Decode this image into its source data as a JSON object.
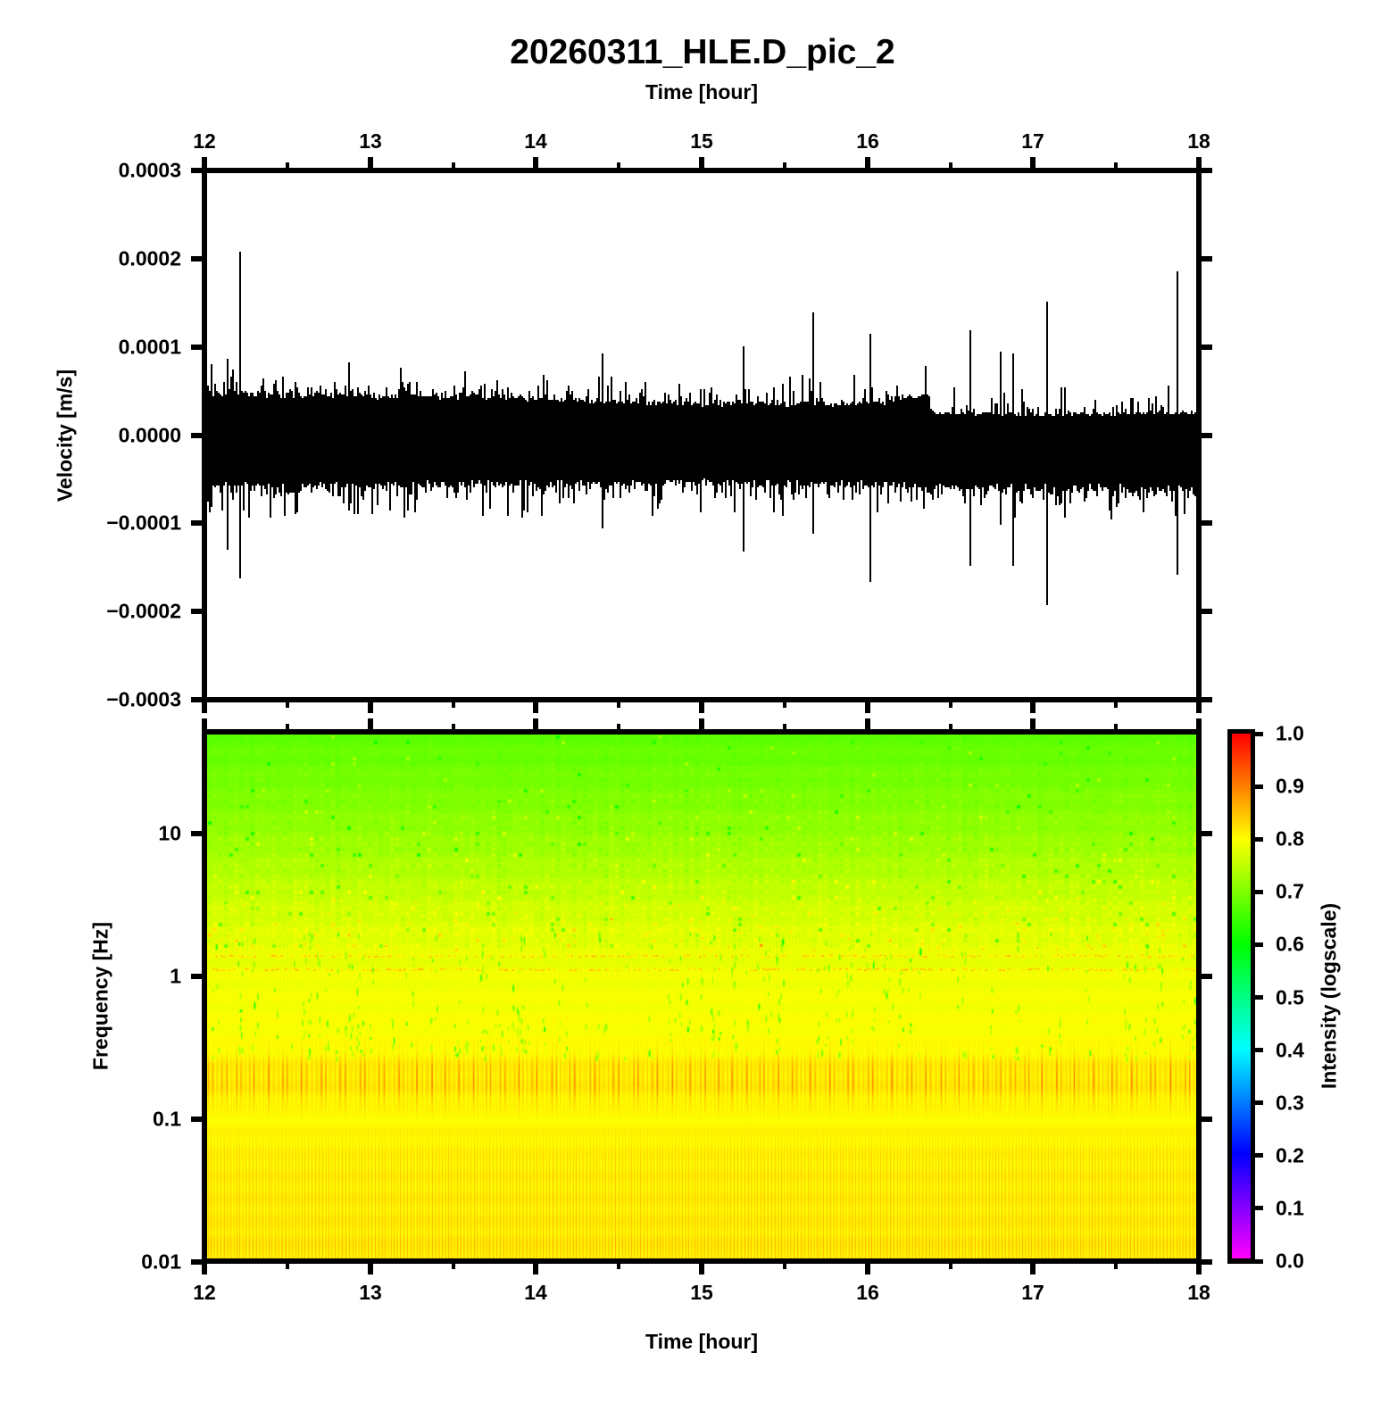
{
  "title": "20260311_HLE.D_pic_2",
  "chart_data": [
    {
      "type": "line",
      "name": "seismic-waveform",
      "title": "20260311_HLE.D_pic_2",
      "xlabel": "Time [hour]",
      "xlabel_position": "top",
      "ylabel": "Velocity [m/s]",
      "x_range": [
        12,
        18
      ],
      "x_major_ticks": [
        12,
        13,
        14,
        15,
        16,
        17,
        18
      ],
      "x_major_labels": [
        "12",
        "13",
        "14",
        "15",
        "16",
        "17",
        "18"
      ],
      "x_minor_ticks": [
        12.5,
        13.5,
        14.5,
        15.5,
        16.5,
        17.5
      ],
      "y_range": [
        -0.0003,
        0.0003
      ],
      "y_major_ticks": [
        0.0003,
        0.0002,
        0.0001,
        0.0,
        -0.0001,
        -0.0002,
        -0.0003
      ],
      "y_major_labels": [
        "0.0003",
        "0.0002",
        "0.0001",
        "0.0000",
        "−0.0001",
        "−0.0002",
        "−0.0003"
      ],
      "grid": false,
      "line_color": "#000000",
      "background": "#ffffff",
      "series_description": "continuous broadband seismometer noise band with impulsive spikes; envelope steps down at t=16.38 h",
      "noise_envelope_top": [
        [
          12,
          4.7e-05
        ],
        [
          12.5,
          4.55e-05
        ],
        [
          13,
          4.4e-05
        ],
        [
          13.5,
          4.35e-05
        ],
        [
          14,
          4.05e-05
        ],
        [
          14.5,
          3.8e-05
        ],
        [
          15,
          3.5e-05
        ],
        [
          15.5,
          3.5e-05
        ],
        [
          16,
          3.6e-05
        ],
        [
          16.25,
          3.9e-05
        ],
        [
          16.36,
          4.4e-05
        ],
        [
          16.39,
          2.55e-05
        ],
        [
          16.8,
          2.35e-05
        ],
        [
          17.3,
          2.35e-05
        ],
        [
          18,
          2.5e-05
        ]
      ],
      "noise_envelope_bottom": [
        [
          12,
          -5.5e-05
        ],
        [
          12.7,
          -5.45e-05
        ],
        [
          13.4,
          -5.35e-05
        ],
        [
          14.2,
          -5.3e-05
        ],
        [
          15,
          -5.15e-05
        ],
        [
          15.6,
          -5.3e-05
        ],
        [
          16,
          -5.4e-05
        ],
        [
          16.38,
          -5.5e-05
        ],
        [
          17,
          -5.65e-05
        ],
        [
          17.5,
          -5.75e-05
        ],
        [
          18,
          -5.85e-05
        ]
      ],
      "hair_mean_top": 8.5e-06,
      "hair_mean_bottom": 1.05e-05,
      "spikes": [
        {
          "t": 12.135,
          "up": 8.7e-05,
          "down": -0.000129
        },
        {
          "t": 12.21,
          "up": 0.000208,
          "down": -0.00016
        },
        {
          "t": 12.87,
          "up": 8.2e-05,
          "down": -8.3e-05
        },
        {
          "t": 14.395,
          "up": 9.3e-05,
          "down": -0.000103
        },
        {
          "t": 15.245,
          "up": 0.0001,
          "down": -0.00013
        },
        {
          "t": 15.67,
          "up": 0.00014,
          "down": -0.00011
        },
        {
          "t": 16.01,
          "up": 0.000115,
          "down": -0.000165
        },
        {
          "t": 16.615,
          "up": 0.000118,
          "down": -0.000147
        },
        {
          "t": 16.8,
          "up": 9.5e-05,
          "down": -0.0001
        },
        {
          "t": 16.87,
          "up": 9.2e-05,
          "down": -0.000146
        },
        {
          "t": 17.08,
          "up": 0.000151,
          "down": -0.000191
        },
        {
          "t": 17.19,
          "up": 5.5e-05,
          "down": -9.2e-05
        },
        {
          "t": 17.86,
          "up": 0.000185,
          "down": -0.000157
        }
      ],
      "seed": 20260311
    },
    {
      "type": "heatmap",
      "name": "spectrogram",
      "xlabel": "Time [hour]",
      "xlabel_position": "bottom",
      "ylabel": "Frequency [Hz]",
      "x_range": [
        12,
        18
      ],
      "x_major_ticks": [
        12,
        13,
        14,
        15,
        16,
        17,
        18
      ],
      "x_major_labels": [
        "12",
        "13",
        "14",
        "15",
        "16",
        "17",
        "18"
      ],
      "x_minor_ticks": [
        12.5,
        13.5,
        14.5,
        15.5,
        16.5,
        17.5
      ],
      "y_scale": "log",
      "y_range": [
        0.0105,
        49.5
      ],
      "y_major_ticks": [
        10,
        1,
        0.1,
        0.01
      ],
      "y_major_labels": [
        "10",
        "1",
        "0.1",
        "0.01"
      ],
      "colormap": "gmt-rainbow (hue = 300*(1-intensity), full saturation HSV: magenta=0 through blue, cyan, green, yellow to red=1)",
      "intensity_profile_logf": [
        [
          1.7,
          0.672
        ],
        [
          1.3,
          0.696
        ],
        [
          1.0,
          0.716
        ],
        [
          0.7,
          0.743
        ],
        [
          0.48,
          0.763
        ],
        [
          0.3,
          0.776
        ],
        [
          0.1,
          0.784
        ],
        [
          0.0,
          0.789
        ],
        [
          -0.3,
          0.796
        ],
        [
          -0.52,
          0.8
        ],
        [
          -0.64,
          0.81
        ],
        [
          -0.82,
          0.81
        ],
        [
          -0.94,
          0.801
        ],
        [
          -1.1,
          0.806
        ],
        [
          -1.5,
          0.809
        ],
        [
          -1.85,
          0.812
        ],
        [
          -1.98,
          0.815
        ]
      ],
      "texture": {
        "speckle_band_logf": [
          0.2,
          1.7
        ],
        "microseism_band_logf_center": -0.72,
        "microseism_band_logf_sigma": 0.115,
        "microseism_stripe_amp": 0.105,
        "lowfreq_stripe_logf_below": -1.02,
        "lowfreq_stripe_amp": 0.05,
        "red_dot_rows_logf": [
          0.145,
          0.05
        ],
        "event_column_count": 120,
        "seed": 311
      },
      "colorbar": {
        "label": "Intensity (logscale)",
        "range": [
          0.0,
          1.0
        ],
        "ticks": [
          0.0,
          0.1,
          0.2,
          0.3,
          0.4,
          0.5,
          0.6,
          0.7,
          0.8,
          0.9,
          1.0
        ],
        "tick_labels": [
          "0.0",
          "0.1",
          "0.2",
          "0.3",
          "0.4",
          "0.5",
          "0.6",
          "0.7",
          "0.8",
          "0.9",
          "1.0"
        ]
      }
    }
  ]
}
